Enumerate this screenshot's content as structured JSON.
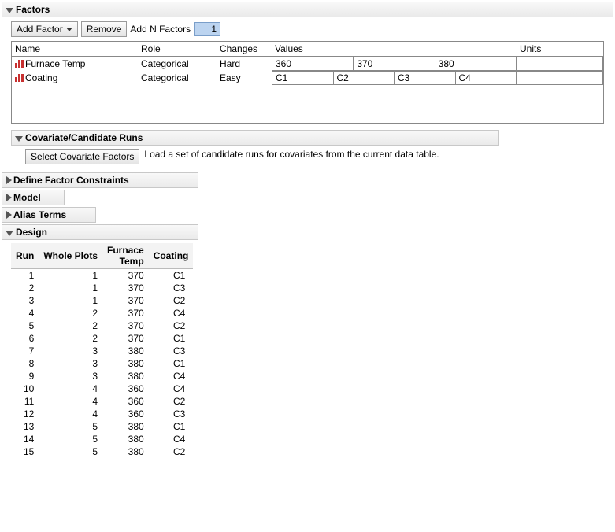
{
  "factorsPanel": {
    "title": "Factors",
    "addFactorLabel": "Add Factor",
    "removeLabel": "Remove",
    "addNLabel": "Add N Factors",
    "addNValue": "1",
    "columns": {
      "name": "Name",
      "role": "Role",
      "changes": "Changes",
      "values": "Values",
      "units": "Units"
    },
    "rows": [
      {
        "name": "Furnace Temp",
        "role": "Categorical",
        "changes": "Hard",
        "values": [
          "360",
          "370",
          "380"
        ],
        "units": ""
      },
      {
        "name": "Coating",
        "role": "Categorical",
        "changes": "Easy",
        "values": [
          "C1",
          "C2",
          "C3",
          "C4"
        ],
        "units": ""
      }
    ]
  },
  "covariate": {
    "title": "Covariate/Candidate Runs",
    "buttonLabel": "Select Covariate Factors",
    "helpText": "Load a set of candidate runs for covariates from the current data table."
  },
  "closedSections": {
    "defineConstraints": "Define Factor Constraints",
    "model": "Model",
    "aliasTerms": "Alias Terms"
  },
  "design": {
    "title": "Design",
    "columns": {
      "run": "Run",
      "wholePlots": "Whole Plots",
      "furnaceTemp": "Furnace Temp",
      "coating": "Coating"
    },
    "rows": [
      {
        "run": 1,
        "wp": 1,
        "ft": 370,
        "c": "C1"
      },
      {
        "run": 2,
        "wp": 1,
        "ft": 370,
        "c": "C3"
      },
      {
        "run": 3,
        "wp": 1,
        "ft": 370,
        "c": "C2"
      },
      {
        "run": 4,
        "wp": 2,
        "ft": 370,
        "c": "C4"
      },
      {
        "run": 5,
        "wp": 2,
        "ft": 370,
        "c": "C2"
      },
      {
        "run": 6,
        "wp": 2,
        "ft": 370,
        "c": "C1"
      },
      {
        "run": 7,
        "wp": 3,
        "ft": 380,
        "c": "C3"
      },
      {
        "run": 8,
        "wp": 3,
        "ft": 380,
        "c": "C1"
      },
      {
        "run": 9,
        "wp": 3,
        "ft": 380,
        "c": "C4"
      },
      {
        "run": 10,
        "wp": 4,
        "ft": 360,
        "c": "C4"
      },
      {
        "run": 11,
        "wp": 4,
        "ft": 360,
        "c": "C2"
      },
      {
        "run": 12,
        "wp": 4,
        "ft": 360,
        "c": "C3"
      },
      {
        "run": 13,
        "wp": 5,
        "ft": 380,
        "c": "C1"
      },
      {
        "run": 14,
        "wp": 5,
        "ft": 380,
        "c": "C4"
      },
      {
        "run": 15,
        "wp": 5,
        "ft": 380,
        "c": "C2"
      }
    ]
  }
}
